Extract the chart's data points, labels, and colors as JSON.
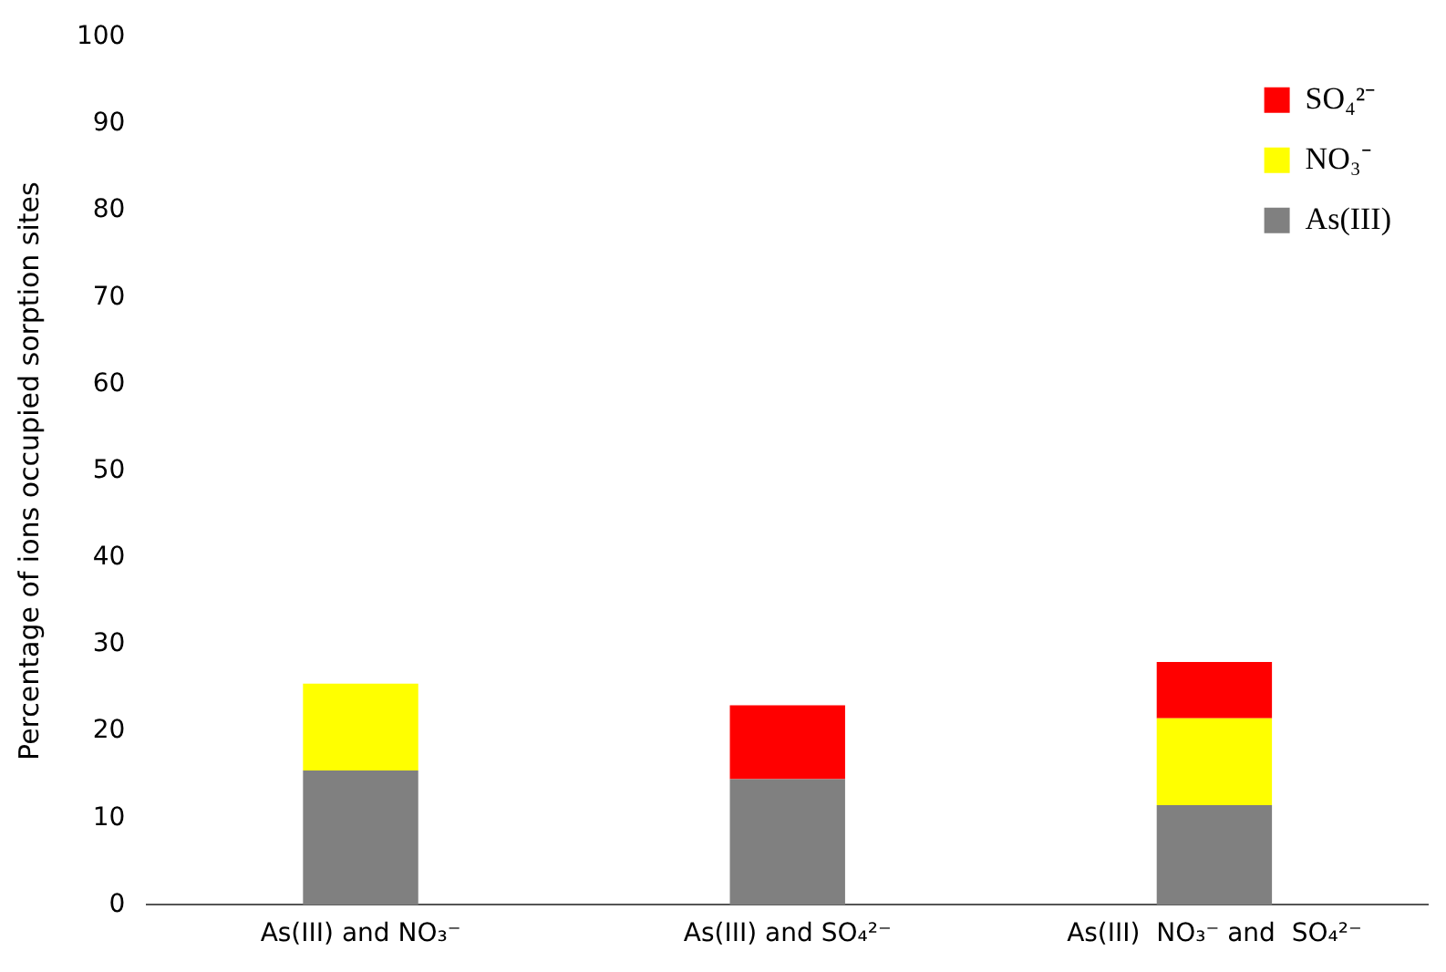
{
  "chart_data": {
    "type": "bar",
    "stacked": true,
    "ylabel": "Percentage of ions occupied sorption sites",
    "categories": [
      "As(III) and NO₃⁻",
      "As(III) and SO₄²⁻",
      "As(III)  NO₃⁻ and  SO₄²⁻"
    ],
    "series": [
      {
        "name": "As(III)",
        "color": "#808080",
        "values": [
          15.5,
          14.5,
          11.5
        ]
      },
      {
        "name": "NO₃⁻",
        "color": "#ffff00",
        "values": [
          10,
          null,
          10
        ]
      },
      {
        "name": "SO₄²⁻",
        "color": "#ff0000",
        "values": [
          null,
          8.5,
          6.5
        ]
      }
    ],
    "ylim": [
      0,
      100
    ],
    "yticks": [
      0,
      10,
      20,
      30,
      40,
      50,
      60,
      70,
      80,
      90,
      100
    ],
    "grid": false,
    "legend": "top right"
  }
}
